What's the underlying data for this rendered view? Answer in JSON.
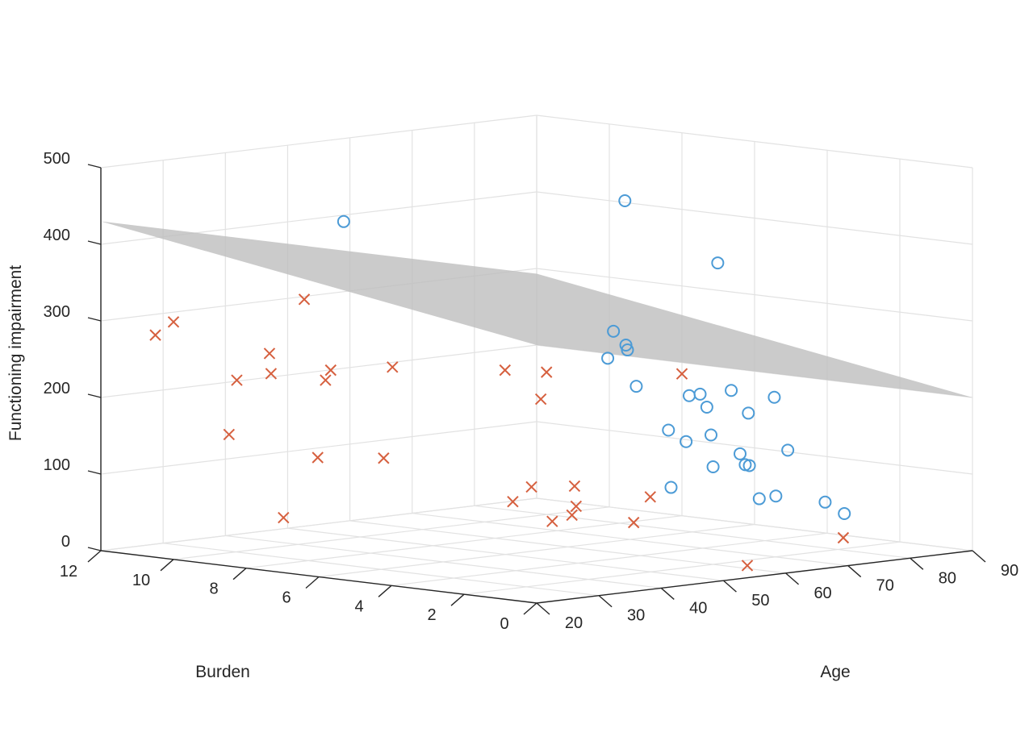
{
  "chart_data": {
    "type": "scatter",
    "xlabel": "Age",
    "ylabel": "Burden",
    "zlabel": "Functioning impairment",
    "xlim": [
      20,
      90
    ],
    "ylim": [
      0,
      12
    ],
    "zlim": [
      0,
      500
    ],
    "xticks": [
      20,
      30,
      40,
      50,
      60,
      70,
      80,
      90
    ],
    "yticks": [
      0,
      2,
      4,
      6,
      8,
      10,
      12
    ],
    "zticks": [
      0,
      100,
      200,
      300,
      400,
      500
    ],
    "grid": true,
    "colors": {
      "circle": "#4c9bd6",
      "cross": "#d6603f",
      "surface": "#bdbdbd"
    },
    "surface": {
      "corners": [
        {
          "x": 20,
          "y": 12,
          "z": 430
        },
        {
          "x": 20,
          "y": 0,
          "z": 430
        },
        {
          "x": 90,
          "y": 0,
          "z": 200
        },
        {
          "x": 90,
          "y": 12,
          "z": 200
        }
      ]
    },
    "series": [
      {
        "marker": "circle",
        "points": [
          [
            40,
            1,
            500
          ],
          [
            52,
            0.5,
            410
          ],
          [
            24,
            6,
            460
          ],
          [
            46,
            2,
            300
          ],
          [
            48,
            0.6,
            240
          ],
          [
            46,
            2.5,
            280
          ],
          [
            52,
            0.8,
            220
          ],
          [
            50,
            2.4,
            240
          ],
          [
            44,
            2,
            320
          ],
          [
            48,
            2.3,
            290
          ],
          [
            64,
            1,
            220
          ],
          [
            60,
            1.5,
            230
          ],
          [
            55,
            1.5,
            230
          ],
          [
            54,
            2.2,
            180
          ],
          [
            58,
            2.4,
            160
          ],
          [
            62,
            3.5,
            90
          ],
          [
            74,
            4.4,
            100
          ],
          [
            78,
            4.2,
            100
          ],
          [
            82,
            4.8,
            160
          ],
          [
            86,
            4.4,
            110
          ],
          [
            88,
            5.8,
            80
          ],
          [
            90,
            7.2,
            110
          ],
          [
            90,
            6.4,
            90
          ],
          [
            80,
            3.7,
            60
          ],
          [
            85,
            3.2,
            50
          ],
          [
            82,
            4.5,
            50
          ],
          [
            84,
            2.5,
            40
          ]
        ]
      },
      {
        "marker": "cross",
        "points": [
          [
            20,
            6.4,
            360
          ],
          [
            20,
            10,
            310
          ],
          [
            20,
            10.5,
            290
          ],
          [
            22,
            7.7,
            280
          ],
          [
            22,
            8.6,
            240
          ],
          [
            24,
            8,
            250
          ],
          [
            24,
            6.5,
            250
          ],
          [
            26,
            6.7,
            260
          ],
          [
            26,
            9.5,
            160
          ],
          [
            28,
            7.4,
            140
          ],
          [
            33,
            6.2,
            260
          ],
          [
            40,
            4.3,
            260
          ],
          [
            42,
            3.5,
            260
          ],
          [
            44,
            4,
            220
          ],
          [
            62,
            3.2,
            240
          ],
          [
            26,
            8,
            60
          ],
          [
            38,
            7.3,
            130
          ],
          [
            40,
            3,
            70
          ],
          [
            46,
            4.6,
            100
          ],
          [
            50,
            4.1,
            100
          ],
          [
            54,
            2.7,
            90
          ],
          [
            50,
            5.8,
            70
          ],
          [
            52,
            4.4,
            70
          ],
          [
            56,
            5.2,
            50
          ],
          [
            56,
            3.5,
            50
          ],
          [
            62,
            1.4,
            0
          ],
          [
            78,
            1.5,
            20
          ]
        ]
      }
    ]
  }
}
